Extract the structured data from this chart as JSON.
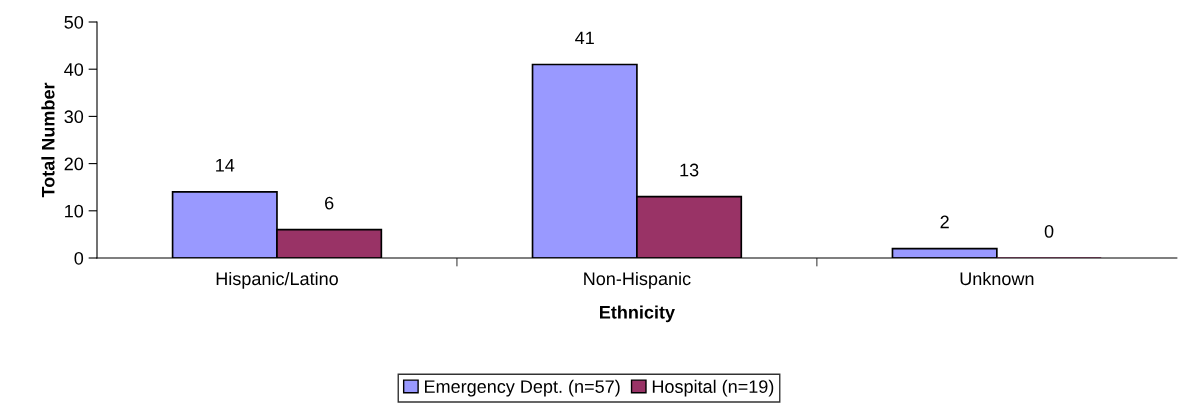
{
  "chart_data": {
    "type": "bar",
    "xlabel": "Ethnicity",
    "ylabel": "Total Number",
    "categories": [
      "Hispanic/Latino",
      "Non-Hispanic",
      "Unknown"
    ],
    "series": [
      {
        "name": "Emergency Dept. (n=57)",
        "color": "#9999ff",
        "values": [
          14,
          41,
          2
        ]
      },
      {
        "name": "Hospital (n=19)",
        "color": "#993366",
        "values": [
          6,
          13,
          0
        ]
      }
    ],
    "ylim": [
      0,
      50
    ],
    "yticks": [
      0,
      10,
      20,
      30,
      40,
      50
    ],
    "grid": false,
    "legend": "bottom",
    "data_labels": true
  }
}
